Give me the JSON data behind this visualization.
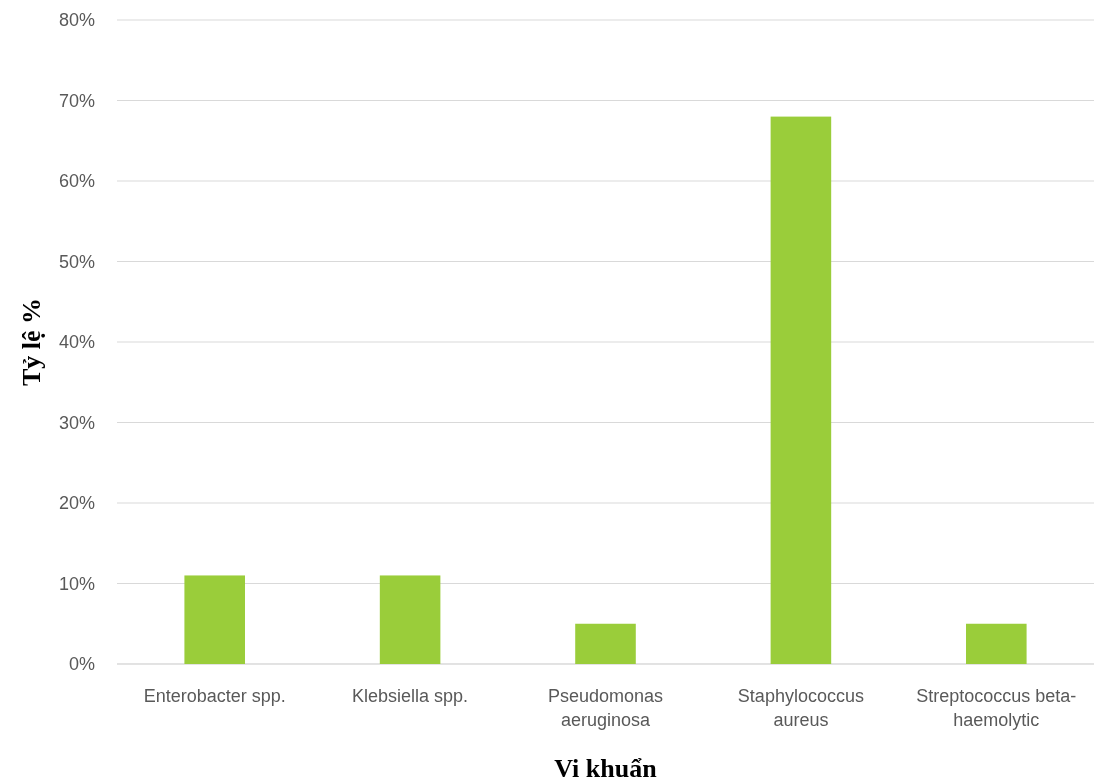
{
  "chart_data": {
    "type": "bar",
    "xlabel": "Vi khuẩn",
    "ylabel": "Tỷ lệ %",
    "categories": [
      "Enterobacter spp.",
      "Klebsiella spp.",
      "Pseudomonas aeruginosa",
      "Staphylococcus aureus",
      "Streptococcus beta-haemolytic"
    ],
    "values": [
      11,
      11,
      5,
      68,
      5
    ],
    "color": "#9acd3a",
    "ylim": [
      0,
      80
    ],
    "yticks": [
      {
        "value": 0,
        "label": "0%"
      },
      {
        "value": 10,
        "label": "10%"
      },
      {
        "value": 20,
        "label": "20%"
      },
      {
        "value": 30,
        "label": "30%"
      },
      {
        "value": 40,
        "label": "40%"
      },
      {
        "value": 50,
        "label": "50%"
      },
      {
        "value": 60,
        "label": "60%"
      },
      {
        "value": 70,
        "label": "70%"
      },
      {
        "value": 80,
        "label": "80%"
      }
    ],
    "grid": "y"
  }
}
